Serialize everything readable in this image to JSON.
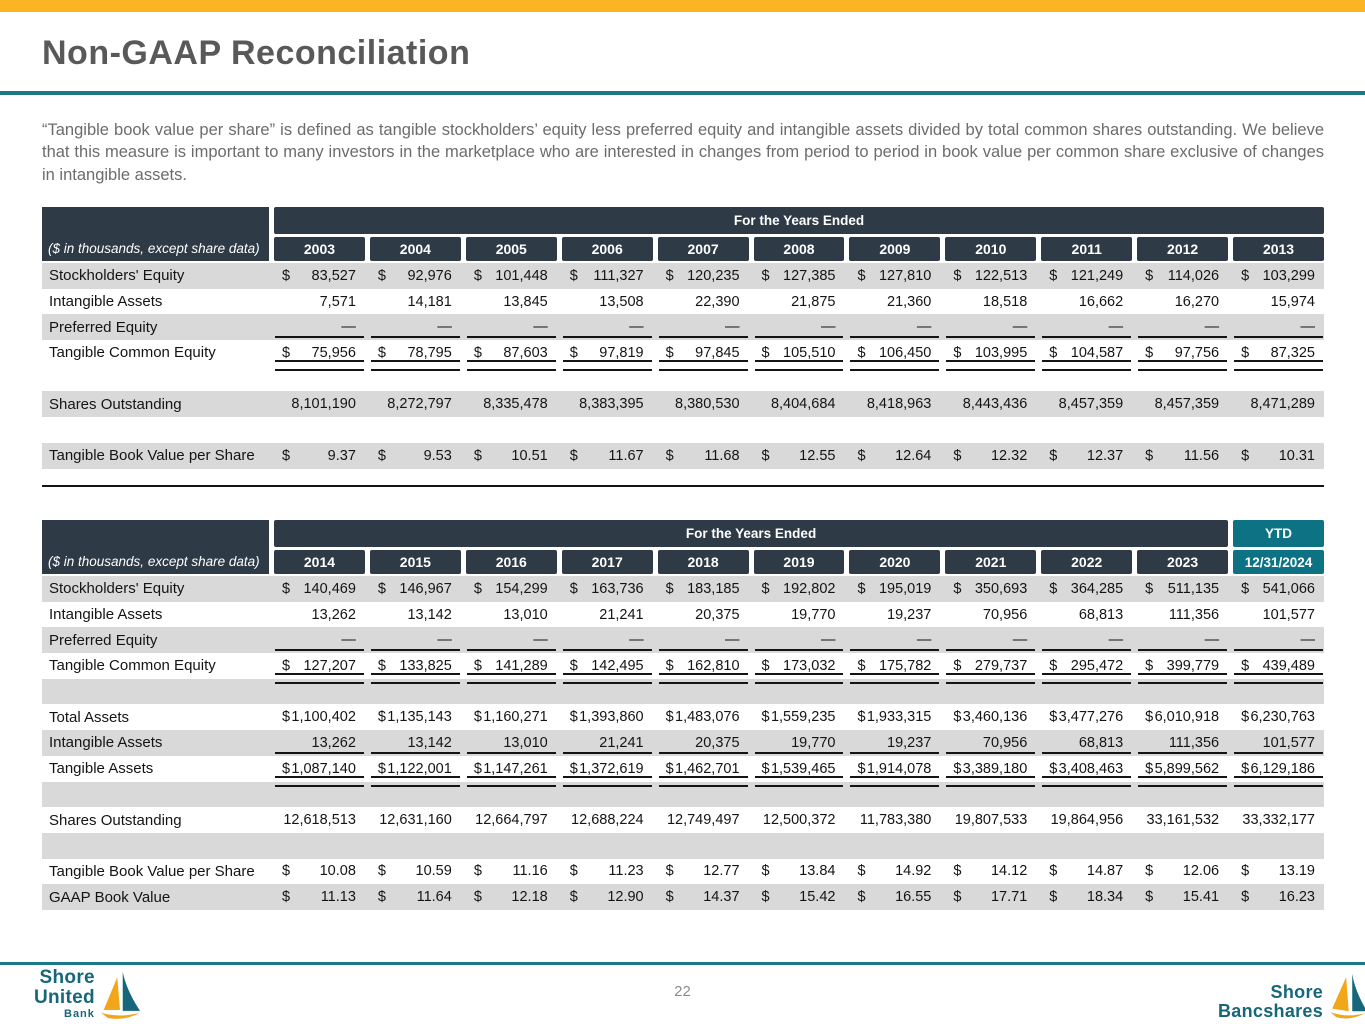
{
  "slide": {
    "title": "Non-GAAP Reconciliation",
    "paragraph": "“Tangible book value per share” is defined as tangible stockholders’ equity less preferred equity and intangible assets divided by total common shares outstanding. We believe that this measure is important to many investors in the marketplace who are interested in changes from period to period in book value per common share exclusive of changes in intangible assets.",
    "page_number": "22"
  },
  "colors": {
    "accent_gold": "#FBB524",
    "accent_teal": "#1C7888",
    "header_dark": "#2E3A46",
    "ytd_teal": "#0E7285",
    "row_gray": "#D9D9D9",
    "title_gray": "#595959",
    "logo_teal": "#156779",
    "logo_gold": "#F2A71B"
  },
  "tables": [
    {
      "corner_note": "($ in thousands, except share data)",
      "span_header": "For the Years Ended",
      "ytd": null,
      "years": [
        "2003",
        "2004",
        "2005",
        "2006",
        "2007",
        "2008",
        "2009",
        "2010",
        "2011",
        "2012",
        "2013"
      ],
      "rows": [
        {
          "label": "Stockholders' Equity",
          "dollar": true,
          "underline": "none",
          "shade": "gray",
          "values": [
            "83,527",
            "92,976",
            "101,448",
            "111,327",
            "120,235",
            "127,385",
            "127,810",
            "122,513",
            "121,249",
            "114,026",
            "103,299"
          ]
        },
        {
          "label": "Intangible Assets",
          "dollar": false,
          "underline": "none",
          "shade": "white",
          "values": [
            "7,571",
            "14,181",
            "13,845",
            "13,508",
            "22,390",
            "21,875",
            "21,360",
            "18,518",
            "16,662",
            "16,270",
            "15,974"
          ]
        },
        {
          "label": "Preferred Equity",
          "dollar": false,
          "underline": "single",
          "shade": "gray",
          "values": [
            "—",
            "—",
            "—",
            "—",
            "—",
            "—",
            "—",
            "—",
            "—",
            "—",
            "—"
          ]
        },
        {
          "label": "Tangible Common Equity",
          "dollar": true,
          "underline": "double",
          "shade": "white",
          "values": [
            "75,956",
            "78,795",
            "87,603",
            "97,819",
            "97,845",
            "105,510",
            "106,450",
            "103,995",
            "104,587",
            "97,756",
            "87,325"
          ]
        },
        {
          "spacer": true,
          "shade": "white"
        },
        {
          "label": "Shares Outstanding",
          "dollar": false,
          "underline": "none",
          "shade": "gray",
          "values": [
            "8,101,190",
            "8,272,797",
            "8,335,478",
            "8,383,395",
            "8,380,530",
            "8,404,684",
            "8,418,963",
            "8,443,436",
            "8,457,359",
            "8,457,359",
            "8,471,289"
          ]
        },
        {
          "spacer": true,
          "shade": "white"
        },
        {
          "label": "Tangible Book Value per Share",
          "dollar": true,
          "underline": "none",
          "shade": "gray",
          "values": [
            "9.37",
            "9.53",
            "10.51",
            "11.67",
            "11.68",
            "12.55",
            "12.64",
            "12.32",
            "12.37",
            "11.56",
            "10.31"
          ]
        }
      ]
    },
    {
      "corner_note": "($ in thousands, except share data)",
      "span_header": "For the Years Ended",
      "ytd": {
        "label": "YTD",
        "sub": "12/31/2024"
      },
      "years": [
        "2014",
        "2015",
        "2016",
        "2017",
        "2018",
        "2019",
        "2020",
        "2021",
        "2022",
        "2023"
      ],
      "rows": [
        {
          "label": "Stockholders' Equity",
          "dollar": true,
          "underline": "none",
          "shade": "gray",
          "values": [
            "140,469",
            "146,967",
            "154,299",
            "163,736",
            "183,185",
            "192,802",
            "195,019",
            "350,693",
            "364,285",
            "511,135",
            "541,066"
          ]
        },
        {
          "label": "Intangible Assets",
          "dollar": false,
          "underline": "none",
          "shade": "white",
          "values": [
            "13,262",
            "13,142",
            "13,010",
            "21,241",
            "20,375",
            "19,770",
            "19,237",
            "70,956",
            "68,813",
            "111,356",
            "101,577"
          ]
        },
        {
          "label": "Preferred Equity",
          "dollar": false,
          "underline": "single",
          "shade": "gray",
          "values": [
            "—",
            "—",
            "—",
            "—",
            "—",
            "—",
            "—",
            "—",
            "—",
            "—",
            "—"
          ]
        },
        {
          "label": "Tangible Common Equity",
          "dollar": true,
          "underline": "double",
          "shade": "white",
          "values": [
            "127,207",
            "133,825",
            "141,289",
            "142,495",
            "162,810",
            "173,032",
            "175,782",
            "279,737",
            "295,472",
            "399,779",
            "439,489"
          ]
        },
        {
          "spacer": true,
          "shade": "gray"
        },
        {
          "label": "Total Assets",
          "dollar": true,
          "underline": "none",
          "shade": "white",
          "values": [
            "1,100,402",
            "1,135,143",
            "1,160,271",
            "1,393,860",
            "1,483,076",
            "1,559,235",
            "1,933,315",
            "3,460,136",
            "3,477,276",
            "6,010,918",
            "6,230,763"
          ]
        },
        {
          "label": "Intangible Assets",
          "dollar": false,
          "underline": "single",
          "shade": "gray",
          "values": [
            "13,262",
            "13,142",
            "13,010",
            "21,241",
            "20,375",
            "19,770",
            "19,237",
            "70,956",
            "68,813",
            "111,356",
            "101,577"
          ]
        },
        {
          "label": "Tangible Assets",
          "dollar": true,
          "underline": "double",
          "shade": "white",
          "values": [
            "1,087,140",
            "1,122,001",
            "1,147,261",
            "1,372,619",
            "1,462,701",
            "1,539,465",
            "1,914,078",
            "3,389,180",
            "3,408,463",
            "5,899,562",
            "6,129,186"
          ]
        },
        {
          "spacer": true,
          "shade": "gray"
        },
        {
          "label": "Shares Outstanding",
          "dollar": false,
          "underline": "none",
          "shade": "white",
          "values": [
            "12,618,513",
            "12,631,160",
            "12,664,797",
            "12,688,224",
            "12,749,497",
            "12,500,372",
            "11,783,380",
            "19,807,533",
            "19,864,956",
            "33,161,532",
            "33,332,177"
          ]
        },
        {
          "spacer": true,
          "shade": "gray"
        },
        {
          "label": "Tangible Book Value per Share",
          "dollar": true,
          "underline": "none",
          "shade": "white",
          "values": [
            "10.08",
            "10.59",
            "11.16",
            "11.23",
            "12.77",
            "13.84",
            "14.92",
            "14.12",
            "14.87",
            "12.06",
            "13.19"
          ]
        },
        {
          "label": "GAAP Book Value",
          "dollar": true,
          "underline": "none",
          "shade": "gray",
          "values": [
            "11.13",
            "11.64",
            "12.18",
            "12.90",
            "14.37",
            "15.42",
            "16.55",
            "17.71",
            "18.34",
            "15.41",
            "16.23"
          ]
        }
      ]
    }
  ],
  "footer": {
    "logo_left": {
      "line1": "Shore",
      "line2": "United",
      "line3": "Bank"
    },
    "logo_right": {
      "line1": "Shore",
      "line2": "Bancshares"
    }
  }
}
